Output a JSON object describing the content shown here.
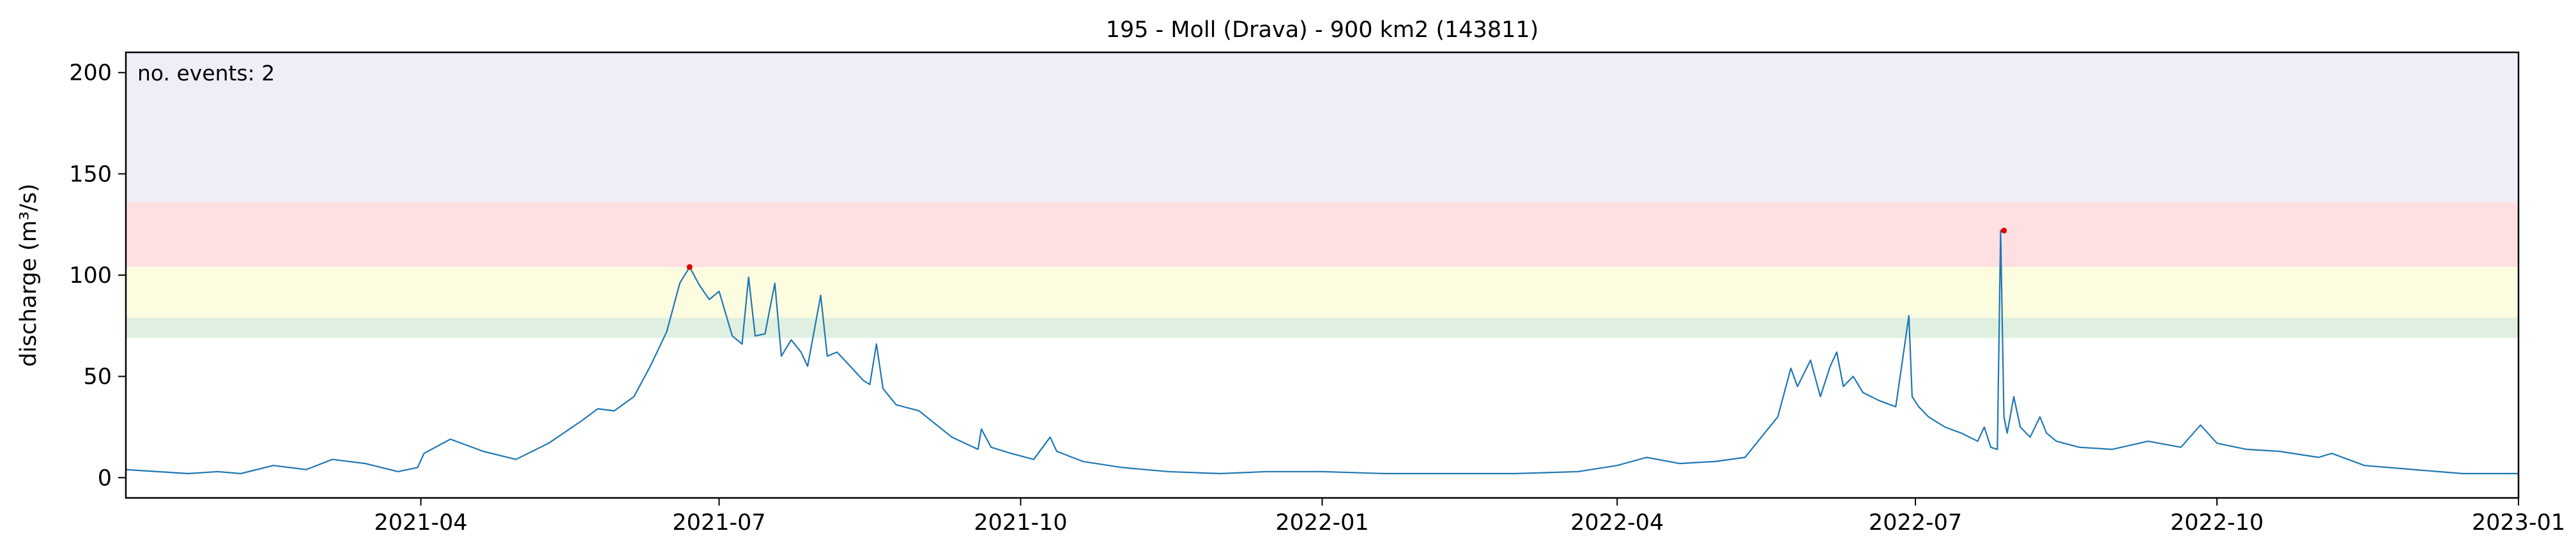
{
  "chart_data": {
    "type": "line",
    "title": "195 - Moll (Drava) - 900 km2 (143811)",
    "xlabel": "",
    "ylabel": "discharge (m³/s)",
    "annotation": "no. events: 2",
    "x_range": [
      "2021-01-01",
      "2023-01-01"
    ],
    "ylim": [
      -10,
      210
    ],
    "grid": false,
    "line_color": "#1f77b4",
    "event_color": "#e00000",
    "x_ticks": [
      "2021-04",
      "2021-07",
      "2021-10",
      "2022-01",
      "2022-04",
      "2022-07",
      "2022-10",
      "2023-01"
    ],
    "y_ticks": [
      0,
      50,
      100,
      150,
      200
    ],
    "bands": [
      {
        "from": 69,
        "to": 79,
        "color": "#dff0e0"
      },
      {
        "from": 79,
        "to": 104,
        "color": "#fcfce0"
      },
      {
        "from": 104,
        "to": 136,
        "color": "#ffe0e2"
      },
      {
        "from": 136,
        "to": 210,
        "color": "#f0edf8"
      }
    ],
    "series": [
      {
        "x": [
          "2021-01-01",
          "2021-01-20",
          "2021-01-29",
          "2021-02-05",
          "2021-02-15",
          "2021-02-25",
          "2021-03-05",
          "2021-03-15",
          "2021-03-25",
          "2021-03-31",
          "2021-04-02",
          "2021-04-10",
          "2021-04-20",
          "2021-04-30",
          "2021-05-10",
          "2021-05-20",
          "2021-05-25",
          "2021-05-30",
          "2021-06-05",
          "2021-06-10",
          "2021-06-15",
          "2021-06-19",
          "2021-06-22",
          "2021-06-25",
          "2021-06-28",
          "2021-07-01",
          "2021-07-05",
          "2021-07-08",
          "2021-07-10",
          "2021-07-12",
          "2021-07-15",
          "2021-07-18",
          "2021-07-20",
          "2021-07-23",
          "2021-07-26",
          "2021-07-28",
          "2021-08-01",
          "2021-08-03",
          "2021-08-06",
          "2021-08-10",
          "2021-08-14",
          "2021-08-16",
          "2021-08-18",
          "2021-08-20",
          "2021-08-24",
          "2021-08-31",
          "2021-09-10",
          "2021-09-18",
          "2021-09-19",
          "2021-09-22",
          "2021-09-28",
          "2021-10-05",
          "2021-10-10",
          "2021-10-12",
          "2021-10-20",
          "2021-11-01",
          "2021-11-15",
          "2021-12-01",
          "2021-12-15",
          "2022-01-01",
          "2022-01-20",
          "2022-02-10",
          "2022-03-01",
          "2022-03-20",
          "2022-04-01",
          "2022-04-10",
          "2022-04-20",
          "2022-05-01",
          "2022-05-10",
          "2022-05-15",
          "2022-05-20",
          "2022-05-24",
          "2022-05-26",
          "2022-05-30",
          "2022-06-02",
          "2022-06-05",
          "2022-06-07",
          "2022-06-09",
          "2022-06-12",
          "2022-06-15",
          "2022-06-20",
          "2022-06-25",
          "2022-06-29",
          "2022-06-30",
          "2022-07-02",
          "2022-07-05",
          "2022-07-10",
          "2022-07-15",
          "2022-07-20",
          "2022-07-22",
          "2022-07-24",
          "2022-07-26",
          "2022-07-27",
          "2022-07-28",
          "2022-07-29",
          "2022-07-31",
          "2022-08-02",
          "2022-08-05",
          "2022-08-08",
          "2022-08-10",
          "2022-08-13",
          "2022-08-20",
          "2022-08-30",
          "2022-09-10",
          "2022-09-20",
          "2022-09-26",
          "2022-10-01",
          "2022-10-10",
          "2022-10-20",
          "2022-11-01",
          "2022-11-05",
          "2022-11-15",
          "2022-11-30",
          "2022-12-15",
          "2023-01-01"
        ],
        "values": [
          4,
          2,
          3,
          2,
          6,
          4,
          9,
          7,
          3,
          5,
          12,
          19,
          13,
          9,
          17,
          28,
          34,
          33,
          40,
          55,
          72,
          96,
          104,
          95,
          88,
          92,
          70,
          66,
          99,
          70,
          71,
          96,
          60,
          68,
          62,
          55,
          90,
          60,
          62,
          55,
          48,
          46,
          66,
          44,
          36,
          33,
          20,
          14,
          24,
          15,
          12,
          9,
          20,
          13,
          8,
          5,
          3,
          2,
          3,
          3,
          2,
          2,
          2,
          3,
          6,
          10,
          7,
          8,
          10,
          20,
          30,
          54,
          45,
          58,
          40,
          55,
          62,
          45,
          50,
          42,
          38,
          35,
          80,
          40,
          35,
          30,
          25,
          22,
          18,
          25,
          15,
          14,
          122,
          30,
          22,
          40,
          25,
          20,
          30,
          22,
          18,
          15,
          14,
          18,
          15,
          26,
          17,
          14,
          13,
          10,
          12,
          6,
          4,
          2,
          2
        ]
      }
    ],
    "events": [
      {
        "x": "2021-06-22",
        "y": 104
      },
      {
        "x": "2022-07-28",
        "y": 122
      }
    ]
  }
}
